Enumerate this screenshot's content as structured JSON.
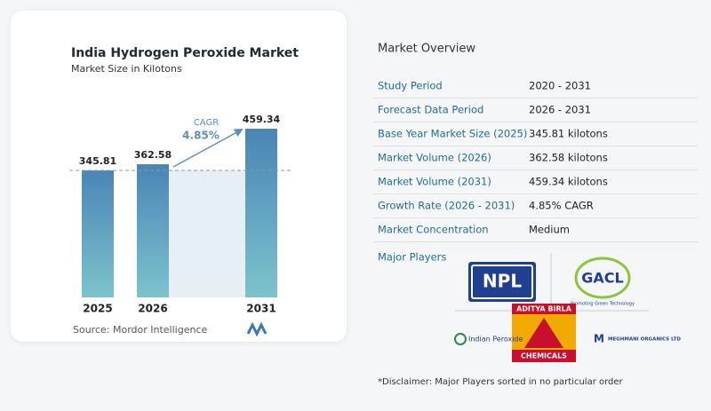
{
  "chart_data": {
    "type": "bar",
    "title": "India Hydrogen Peroxide Market",
    "subtitle": "Market Size in Kilotons",
    "categories": [
      "2025",
      "2026",
      "2031"
    ],
    "values": [
      345.81,
      362.58,
      459.34
    ],
    "annotation": {
      "label": "CAGR",
      "value": "4.85%"
    },
    "source": "Source:  Mordor Intelligence"
  },
  "overview": {
    "title": "Market Overview",
    "rows": [
      [
        "Study Period",
        "2020 - 2031"
      ],
      [
        "Forecast Data Period",
        "2026 - 2031"
      ],
      [
        "Base Year Market Size (2025)",
        "345.81 kilotons"
      ],
      [
        "Market Volume (2026)",
        "362.58 kilotons"
      ],
      [
        "Market Volume (2031)",
        "459.34 kilotons"
      ],
      [
        "Growth Rate (2026 - 2031)",
        "4.85% CAGR"
      ],
      [
        "Market Concentration",
        "Medium"
      ]
    ],
    "players_title": "Major Players",
    "players": {
      "npl": "NPL",
      "gacl": "GACL",
      "gacl_tag": "Promoting Green Technology",
      "birla": "ADITYA BIRLA",
      "birla_sub": "CHEMICALS",
      "indian": "Indian Peroxide",
      "meghmani": "MEGHMANI ORGANICS LTD"
    },
    "disclaimer": "*Disclaimer: Major Players sorted in no particular order"
  }
}
